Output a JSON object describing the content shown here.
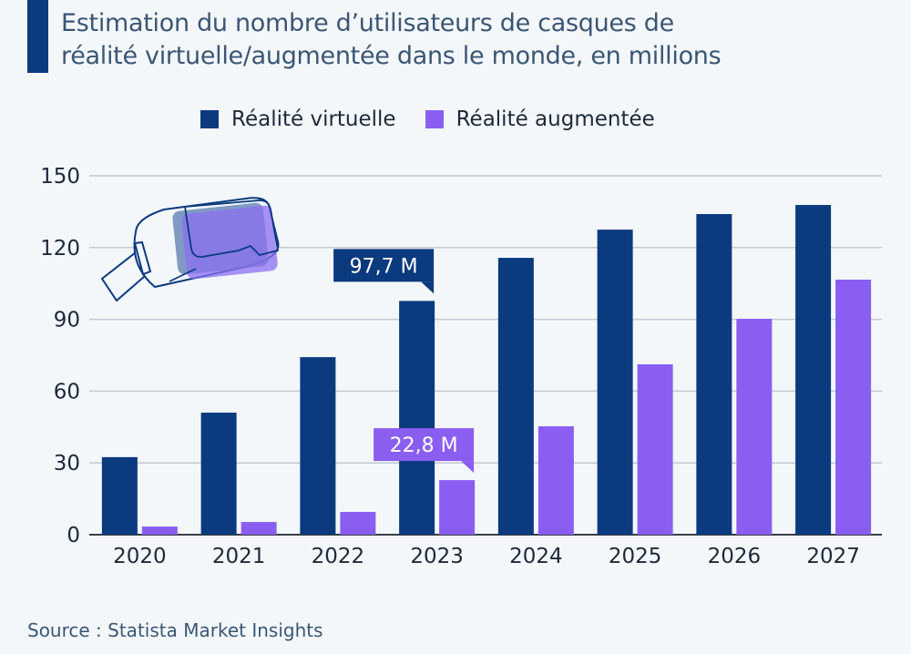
{
  "chart_data": {
    "type": "bar",
    "title": "Estimation du nombre d’utilisateurs de casques de réalité virtuelle/augmentée dans le monde, en millions",
    "title_lines": [
      "Estimation du nombre d’utilisateurs de casques de",
      "réalité virtuelle/augmentée dans le monde, en millions"
    ],
    "categories": [
      "2020",
      "2021",
      "2022",
      "2023",
      "2024",
      "2025",
      "2026",
      "2027"
    ],
    "series": [
      {
        "name": "Réalité virtuelle",
        "color": "#0b3a7e",
        "values": [
          32.4,
          51.0,
          74.2,
          97.7,
          115.7,
          127.5,
          134.0,
          137.8
        ]
      },
      {
        "name": "Réalité augmentée",
        "color": "#8a5ef0",
        "values": [
          3.4,
          5.3,
          9.5,
          22.8,
          45.3,
          71.2,
          90.2,
          106.6
        ]
      }
    ],
    "yticks": [
      "0",
      "30",
      "60",
      "90",
      "120",
      "150"
    ],
    "ylim": [
      0,
      150
    ],
    "xlabel": "",
    "ylabel": "",
    "grid": true,
    "legend_position": "top",
    "annotations": [
      {
        "series": 0,
        "category": "2023",
        "text": "97,7 M"
      },
      {
        "series": 1,
        "category": "2023",
        "text": "22,8 M"
      }
    ],
    "source": "Source : Statista Market Insights"
  },
  "icons": {
    "illustration": "vr-headset-icon"
  }
}
